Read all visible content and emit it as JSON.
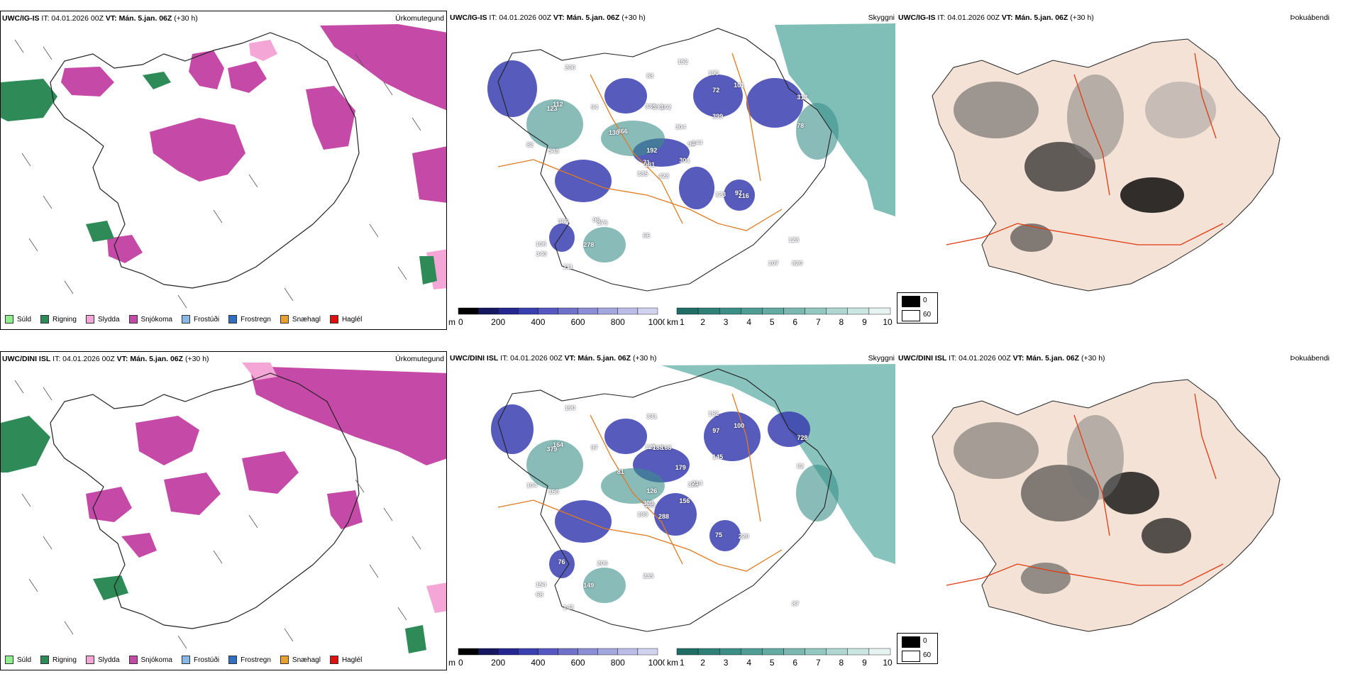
{
  "rows": [
    {
      "ptype": {
        "model": "UWC/IG-IS",
        "it": "IT: 04.01.2026 00Z",
        "vt_label": "VT:",
        "vt": "Mán. 5.jan. 06Z",
        "lead": "(+30 h)",
        "title": "Úrkomutegund"
      },
      "vis": {
        "model": "UWC/IG-IS",
        "it": "IT: 04.01.2026 00Z",
        "vt_label": "VT:",
        "vt": "Mán. 5.jan. 06Z",
        "lead": "(+30 h)",
        "title": "Skyggni"
      },
      "fog": {
        "model": "UWC/IG-IS",
        "it": "IT: 04.01.2026 00Z",
        "vt_label": "VT:",
        "vt": "Mán. 5.jan. 06Z",
        "lead": "(+30 h)",
        "title": "Þokuábendi"
      }
    },
    {
      "ptype": {
        "model": "UWC/DINI ISL",
        "it": "IT: 04.01.2026 00Z",
        "vt_label": "VT:",
        "vt": "Mán. 5.jan. 06Z",
        "lead": "(+30 h)",
        "title": "Úrkomutegund"
      },
      "vis": {
        "model": "UWC/DINI ISL",
        "it": "IT: 04.01.2026 00Z",
        "vt_label": "VT:",
        "vt": "Mán. 5.jan. 06Z",
        "lead": "(+30 h)",
        "title": "Skyggni"
      },
      "fog": {
        "model": "UWC/DINI ISL",
        "it": "IT: 04.01.2026 00Z",
        "vt_label": "VT:",
        "vt": "Mán. 5.jan. 06Z",
        "lead": "(+30 h)",
        "title": "Þokuábendi"
      }
    }
  ],
  "ptype_legend": [
    {
      "label": "Súld",
      "color": "#90ee90"
    },
    {
      "label": "Rigning",
      "color": "#2e8b57"
    },
    {
      "label": "Slydda",
      "color": "#f4a6d7"
    },
    {
      "label": "Snjókoma",
      "color": "#c54aa7"
    },
    {
      "label": "Frostúði",
      "color": "#87b8e8"
    },
    {
      "label": "Frostregn",
      "color": "#2f6fc0"
    },
    {
      "label": "Snæhagl",
      "color": "#e8a030"
    },
    {
      "label": "Haglél",
      "color": "#e01010"
    }
  ],
  "height_bar": {
    "unit": "m",
    "ticks": [
      "0",
      "200",
      "400",
      "600",
      "800",
      "1000"
    ]
  },
  "vis_bar": {
    "unit": "km",
    "ticks": [
      "1",
      "2",
      "3",
      "4",
      "5",
      "6",
      "7",
      "8",
      "9",
      "10"
    ]
  },
  "fog_key": [
    {
      "label": "0",
      "color": "#000000"
    },
    {
      "label": "60",
      "color": "#ffffff"
    }
  ],
  "vis_labels_top": [
    "423",
    "123",
    "101",
    "106",
    "90",
    "376",
    "190",
    "102",
    "72",
    "301",
    "206",
    "820",
    "548",
    "313",
    "335",
    "399",
    "111",
    "336",
    "304",
    "386",
    "866",
    "340",
    "278",
    "393",
    "144",
    "216",
    "112",
    "83",
    "82",
    "123",
    "78",
    "71",
    "66",
    "192",
    "94",
    "101",
    "96",
    "107",
    "123",
    "97",
    "152",
    "130"
  ],
  "vis_labels_bottom": [
    "288",
    "379",
    "139",
    "154",
    "328",
    "206",
    "162",
    "168",
    "97",
    "156",
    "190",
    "87",
    "160",
    "728",
    "199",
    "145",
    "142",
    "125",
    "179",
    "76",
    "81",
    "68",
    "149",
    "188",
    "214",
    "220",
    "164",
    "331",
    "104",
    "75",
    "62",
    "309",
    "235",
    "126",
    "97",
    "100"
  ]
}
